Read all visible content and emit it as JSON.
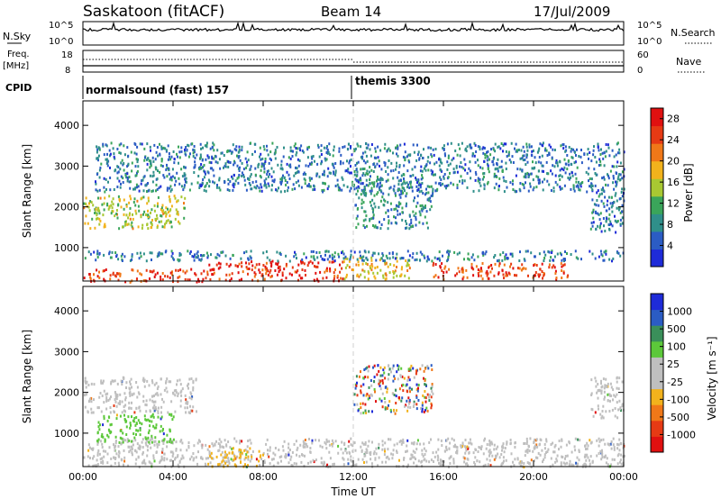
{
  "header": {
    "station": "Saskatoon (fitACF)",
    "beam": "Beam 14",
    "date": "17/Jul/2009"
  },
  "strips": {
    "nsky_label": "N.Sky",
    "nsky_ticks": [
      "10^5",
      "10^0"
    ],
    "nsearch_label": "N.Search",
    "nsearch_ticks": [
      "10^5",
      "10^0"
    ],
    "freq_label_1": "Freq.",
    "freq_label_2": "[MHz]",
    "freq_ticks": [
      "18",
      "8"
    ],
    "nave_label": "Nave",
    "nave_ticks": [
      "60",
      "0"
    ],
    "cpid_label": "CPID",
    "cpid_segments": [
      {
        "label": "normalsound (fast) 157",
        "start_hour": 0
      },
      {
        "label": "themis 3300",
        "start_hour": 12
      }
    ]
  },
  "chart_data": [
    {
      "type": "heatmap",
      "name": "power",
      "ylabel": "Slant Range [km]",
      "xlabel": "",
      "x_range_hours": [
        0,
        24
      ],
      "ylim": [
        180,
        4600
      ],
      "yticks": [
        "1000",
        "2000",
        "3000",
        "4000"
      ],
      "colorbar": {
        "label": "Power [dB]",
        "ticks": [
          "4",
          "8",
          "12",
          "16",
          "20",
          "24",
          "28"
        ],
        "range": [
          0,
          30
        ],
        "colors": [
          "#1e2bd8",
          "#2b5cc4",
          "#2f8f8a",
          "#3aa55a",
          "#a8c832",
          "#f2b21c",
          "#f07818",
          "#e63a14",
          "#e01010"
        ]
      },
      "scatter_regions": [
        {
          "t0": 0.0,
          "t1": 5.5,
          "r0": 180,
          "r1": 500,
          "level": 26
        },
        {
          "t0": 5.5,
          "t1": 11.5,
          "r0": 200,
          "r1": 700,
          "level": 28
        },
        {
          "t0": 11.5,
          "t1": 14.5,
          "r0": 250,
          "r1": 800,
          "level": 18
        },
        {
          "t0": 15.5,
          "t1": 21.5,
          "r0": 250,
          "r1": 650,
          "level": 26
        },
        {
          "t0": 0.0,
          "t1": 24.0,
          "r0": 700,
          "r1": 950,
          "level": 6
        },
        {
          "t0": 0.0,
          "t1": 4.5,
          "r0": 1500,
          "r1": 2300,
          "level": 16
        },
        {
          "t0": 12.0,
          "t1": 15.5,
          "r0": 1500,
          "r1": 2700,
          "level": 8
        },
        {
          "t0": 22.5,
          "t1": 24.0,
          "r0": 1400,
          "r1": 2400,
          "level": 6
        },
        {
          "t0": 0.5,
          "t1": 24.0,
          "r0": 2400,
          "r1": 3600,
          "level": 6
        }
      ]
    },
    {
      "type": "heatmap",
      "name": "velocity",
      "ylabel": "Slant Range [km]",
      "xlabel": "Time UT",
      "x_range_hours": [
        0,
        24
      ],
      "xticks": [
        "00:00",
        "04:00",
        "08:00",
        "12:00",
        "16:00",
        "20:00",
        "00:00"
      ],
      "ylim": [
        180,
        4600
      ],
      "yticks": [
        "1000",
        "2000",
        "3000",
        "4000"
      ],
      "colorbar": {
        "label": "Velocity [m s⁻¹]",
        "ticks": [
          "1000",
          "500",
          "100",
          "25",
          "-25",
          "-100",
          "-500",
          "-1000"
        ],
        "colors": [
          "#1e2bd8",
          "#2b5cc4",
          "#3a8f5a",
          "#5cc83a",
          "#bfbfbf",
          "#bfbfbf",
          "#f2b21c",
          "#f07818",
          "#e63a14",
          "#e01010"
        ]
      },
      "scatter_regions": [
        {
          "t0": 0.0,
          "t1": 24.0,
          "r0": 200,
          "r1": 900,
          "color": "gray"
        },
        {
          "t0": 0.0,
          "t1": 5.0,
          "r0": 1500,
          "r1": 2400,
          "color": "gray"
        },
        {
          "t0": 0.5,
          "t1": 4.0,
          "r0": 800,
          "r1": 1500,
          "color": "green"
        },
        {
          "t0": 5.5,
          "t1": 8.0,
          "r0": 200,
          "r1": 700,
          "color": "orange"
        },
        {
          "t0": 12.0,
          "t1": 15.5,
          "r0": 1500,
          "r1": 2700,
          "color": "mixed"
        },
        {
          "t0": 22.5,
          "t1": 24.0,
          "r0": 1400,
          "r1": 2400,
          "color": "gray"
        }
      ]
    }
  ]
}
